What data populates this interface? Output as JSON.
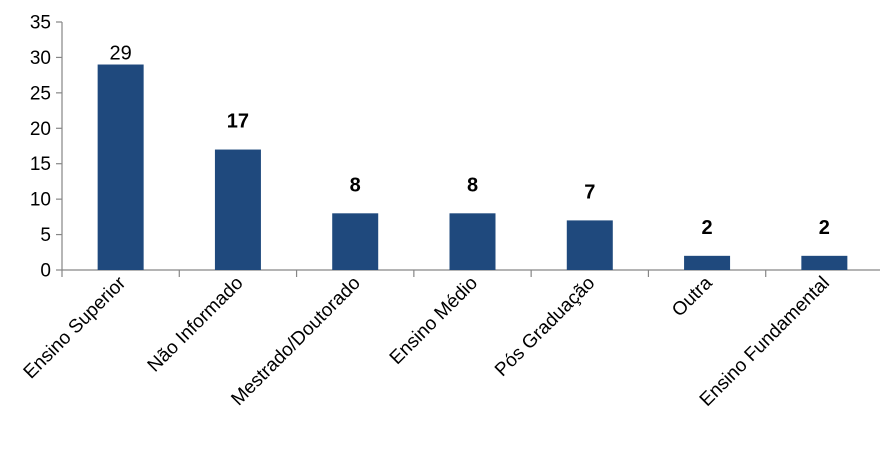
{
  "chart_data": {
    "type": "bar",
    "categories": [
      "Ensino Superior",
      "Não Informado",
      "Mestrado/Doutorado",
      "Ensino Médio",
      "Pós Graduação",
      "Outra",
      "Ensino Fundamental"
    ],
    "values": [
      29,
      17,
      8,
      8,
      7,
      2,
      2
    ],
    "data_labels": [
      "29",
      "17",
      "8",
      "8",
      "7",
      "2",
      "2"
    ],
    "data_label_bold": [
      false,
      true,
      true,
      true,
      true,
      true,
      true
    ],
    "yticks": [
      "0",
      "5",
      "10",
      "15",
      "20",
      "25",
      "30",
      "35"
    ],
    "ylim": [
      0,
      35
    ],
    "bar_color": "#1f497d",
    "grid": false,
    "legend": "none",
    "title": "",
    "xlabel": "",
    "ylabel": ""
  }
}
